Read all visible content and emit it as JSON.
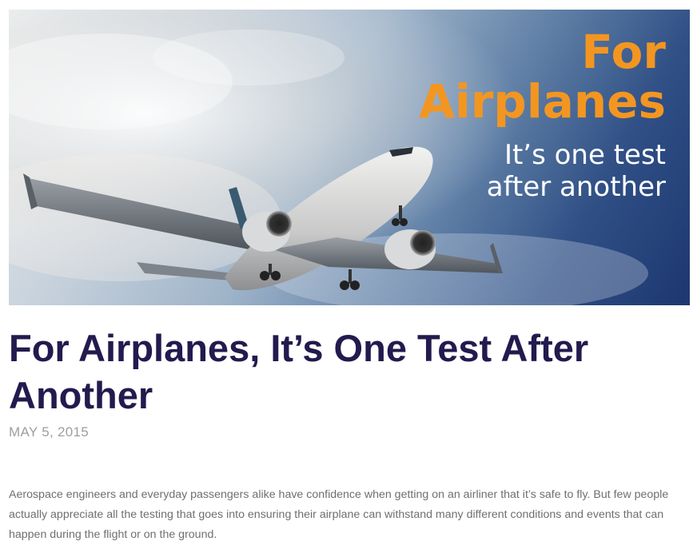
{
  "hero": {
    "image": "airliner-takeoff-photo",
    "line1": "For",
    "line2": "Airplanes",
    "line3": "It’s one test",
    "line4": "after another",
    "accent_color": "#f39621"
  },
  "article": {
    "title": "For Airplanes, It’s One Test After Another",
    "date": "MAY 5, 2015",
    "paragraph": "Aerospace engineers and everyday passengers alike have confidence when getting on an airliner that it’s safe to fly. But few people actually appreciate all the testing that goes into ensuring their airplane can withstand many different conditions and events that can happen during the flight or on the ground."
  },
  "colors": {
    "title": "#231a4e",
    "date": "#9e9e9e",
    "body": "#6f6f6f"
  }
}
